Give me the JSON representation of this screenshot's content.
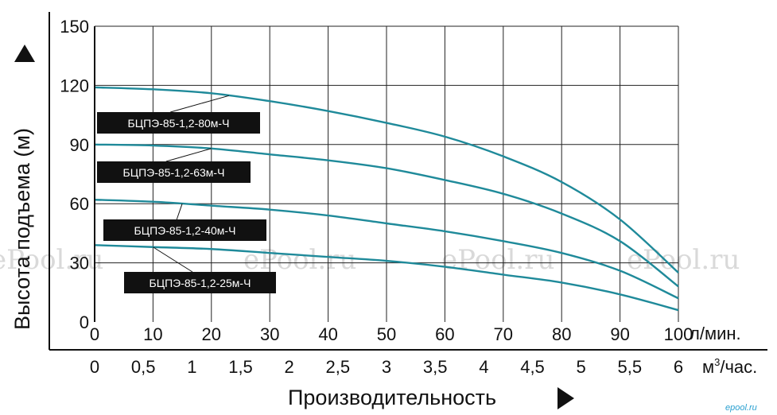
{
  "chart_data": {
    "type": "line",
    "xlabel": "Производительность",
    "ylabel": "Высота подъема (м)",
    "x_unit": "л/мин.",
    "x2_unit_prefix": "м",
    "x2_unit_sup": "3",
    "x2_unit_suffix": "/час.",
    "xlim": [
      0,
      100
    ],
    "ylim": [
      0,
      150
    ],
    "x_ticks": [
      0,
      10,
      20,
      30,
      40,
      50,
      60,
      70,
      80,
      90,
      100
    ],
    "x_tick_labels": [
      "0",
      "10",
      "20",
      "30",
      "40",
      "50",
      "60",
      "70",
      "80",
      "90",
      "100"
    ],
    "x2_ticks": [
      0,
      0.5,
      1,
      1.5,
      2,
      2.5,
      3,
      3.5,
      4,
      4.5,
      5,
      5.5,
      6
    ],
    "x2_tick_labels": [
      "0",
      "0,5",
      "1",
      "1,5",
      "2",
      "2,5",
      "3",
      "3,5",
      "4",
      "4,5",
      "5",
      "5,5",
      "6"
    ],
    "x2_lim": [
      0,
      6
    ],
    "y_ticks": [
      0,
      30,
      60,
      90,
      120,
      150
    ],
    "y_tick_labels": [
      "0",
      "30",
      "60",
      "90",
      "120",
      "150"
    ],
    "grid": true,
    "line_color": "#1f8a9a",
    "series": [
      {
        "name": "БЦПЭ-85-1,2-80м-Ч",
        "x": [
          0,
          10,
          20,
          30,
          40,
          50,
          60,
          70,
          80,
          90,
          100
        ],
        "y": [
          119,
          118,
          116,
          112,
          107,
          101,
          94,
          84,
          71,
          52,
          25
        ]
      },
      {
        "name": "БЦПЭ-85-1,2-63м-Ч",
        "x": [
          0,
          10,
          20,
          30,
          40,
          50,
          60,
          70,
          80,
          90,
          100
        ],
        "y": [
          90,
          89.5,
          88,
          85,
          82,
          78,
          72,
          65,
          55,
          41,
          18
        ]
      },
      {
        "name": "БЦПЭ-85-1,2-40м-Ч",
        "x": [
          0,
          10,
          20,
          30,
          40,
          50,
          60,
          70,
          80,
          90,
          100
        ],
        "y": [
          62,
          61,
          59,
          57,
          54,
          50,
          46,
          41,
          35,
          26,
          12
        ]
      },
      {
        "name": "БЦПЭ-85-1,2-25м-Ч",
        "x": [
          0,
          10,
          20,
          30,
          40,
          50,
          60,
          70,
          80,
          90,
          100
        ],
        "y": [
          39,
          38,
          37,
          35,
          33,
          31,
          28,
          24,
          20,
          14,
          6
        ]
      }
    ]
  },
  "watermark": "ePool.ru",
  "logo": "epool.ru"
}
